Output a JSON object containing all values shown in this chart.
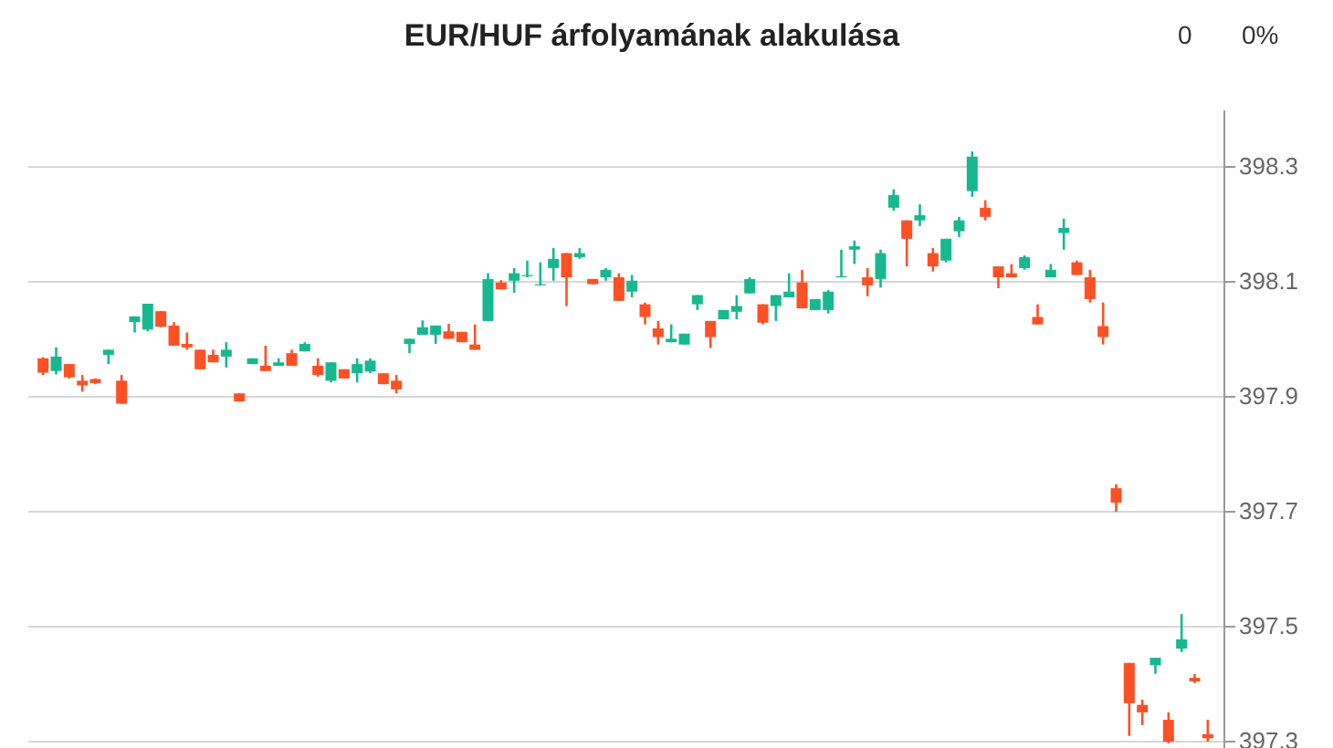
{
  "chart_data": {
    "type": "candlestick",
    "title": "EUR/HUF árfolyamának alakulása",
    "annotations": [
      "0",
      "0%"
    ],
    "categories": [
      null,
      null,
      null,
      null,
      null,
      null,
      null,
      null,
      null,
      null,
      null,
      null,
      null,
      null,
      null,
      null,
      null,
      null,
      null,
      null,
      null,
      null,
      null,
      null,
      null,
      null,
      null,
      null,
      null,
      null,
      null,
      null,
      null,
      null,
      null,
      null,
      null,
      null,
      null,
      null,
      null,
      null,
      null,
      null,
      null,
      null,
      null,
      null,
      null,
      null,
      null,
      null,
      null,
      null,
      null,
      null,
      null,
      null,
      null,
      null,
      null,
      null,
      null,
      null,
      null,
      null,
      null,
      null,
      null,
      null,
      null,
      null,
      null,
      null,
      null,
      null,
      null,
      null,
      null,
      null,
      null,
      null,
      null,
      null,
      null,
      null,
      null,
      null,
      null,
      null
    ],
    "ohlc": [
      [
        397.965,
        397.967,
        397.936,
        397.94
      ],
      [
        397.943,
        397.984,
        397.937,
        397.968
      ],
      [
        397.955,
        397.955,
        397.93,
        397.932
      ],
      [
        397.926,
        397.936,
        397.907,
        397.918
      ],
      [
        397.929,
        397.93,
        397.92,
        397.922
      ],
      [
        397.971,
        397.98,
        397.955,
        397.98
      ],
      [
        397.926,
        397.936,
        397.886,
        397.886
      ],
      [
        398.028,
        398.038,
        398.01,
        398.038
      ],
      [
        398.015,
        398.06,
        398.012,
        398.06
      ],
      [
        398.047,
        398.047,
        398.019,
        398.02
      ],
      [
        398.022,
        398.028,
        397.987,
        397.987
      ],
      [
        397.99,
        398.01,
        397.98,
        397.984
      ],
      [
        397.98,
        397.98,
        397.946,
        397.946
      ],
      [
        397.971,
        397.98,
        397.958,
        397.958
      ],
      [
        397.968,
        397.993,
        397.949,
        397.98
      ],
      [
        397.904,
        397.904,
        397.89,
        397.89
      ],
      [
        397.955,
        397.965,
        397.955,
        397.965
      ],
      [
        397.952,
        397.987,
        397.943,
        397.943
      ],
      [
        397.952,
        397.965,
        397.952,
        397.958
      ],
      [
        397.974,
        397.98,
        397.952,
        397.952
      ],
      [
        397.977,
        397.993,
        397.977,
        397.99
      ],
      [
        397.952,
        397.965,
        397.933,
        397.936
      ],
      [
        397.926,
        397.958,
        397.923,
        397.958
      ],
      [
        397.946,
        397.946,
        397.93,
        397.93
      ],
      [
        397.939,
        397.965,
        397.923,
        397.955
      ],
      [
        397.942,
        397.965,
        397.939,
        397.961
      ],
      [
        397.939,
        397.939,
        397.92,
        397.92
      ],
      [
        397.926,
        397.936,
        397.904,
        397.911
      ],
      [
        397.99,
        397.999,
        397.974,
        397.999
      ],
      [
        398.006,
        398.031,
        398.006,
        398.019
      ],
      [
        398.006,
        398.022,
        397.99,
        398.022
      ],
      [
        398.012,
        398.025,
        397.999,
        397.999
      ],
      [
        398.011,
        398.011,
        397.993,
        397.993
      ],
      [
        397.989,
        398.024,
        397.98,
        397.98
      ],
      [
        398.03,
        398.113,
        398.03,
        398.103
      ],
      [
        398.097,
        398.101,
        398.085,
        398.085
      ],
      [
        398.1,
        398.122,
        398.079,
        398.113
      ],
      [
        398.108,
        398.135,
        398.106,
        398.11
      ],
      [
        398.092,
        398.132,
        398.092,
        398.094
      ],
      [
        398.122,
        398.157,
        398.1,
        398.138
      ],
      [
        398.148,
        398.148,
        398.056,
        398.106
      ],
      [
        398.141,
        398.157,
        398.138,
        398.148
      ],
      [
        398.103,
        398.103,
        398.094,
        398.094
      ],
      [
        398.106,
        398.122,
        398.1,
        398.119
      ],
      [
        398.106,
        398.113,
        398.065,
        398.065
      ],
      [
        398.081,
        398.11,
        398.071,
        398.1
      ],
      [
        398.059,
        398.062,
        398.024,
        398.037
      ],
      [
        398.017,
        398.03,
        397.989,
        398.002
      ],
      [
        397.993,
        398.024,
        397.993,
        397.999
      ],
      [
        397.989,
        398.008,
        397.989,
        398.008
      ],
      [
        398.059,
        398.075,
        398.049,
        398.075
      ],
      [
        398.03,
        398.03,
        397.983,
        398.002
      ],
      [
        398.033,
        398.049,
        398.033,
        398.049
      ],
      [
        398.046,
        398.075,
        398.033,
        398.056
      ],
      [
        398.078,
        398.106,
        398.078,
        398.103
      ],
      [
        398.059,
        398.059,
        398.024,
        398.027
      ],
      [
        398.056,
        398.075,
        398.03,
        398.075
      ],
      [
        398.071,
        398.113,
        398.071,
        398.081
      ],
      [
        398.097,
        398.119,
        398.052,
        398.052
      ],
      [
        398.049,
        398.068,
        398.049,
        398.068
      ],
      [
        398.049,
        398.084,
        398.043,
        398.081
      ],
      [
        398.106,
        398.154,
        398.106,
        398.108
      ],
      [
        398.154,
        398.17,
        398.129,
        398.16
      ],
      [
        398.106,
        398.122,
        398.073,
        398.092
      ],
      [
        398.103,
        398.154,
        398.088,
        398.148
      ],
      [
        398.227,
        398.259,
        398.222,
        398.249
      ],
      [
        398.205,
        398.205,
        398.125,
        398.173
      ],
      [
        398.205,
        398.233,
        398.195,
        398.214
      ],
      [
        398.148,
        398.157,
        398.116,
        398.125
      ],
      [
        398.135,
        398.173,
        398.132,
        398.173
      ],
      [
        398.186,
        398.211,
        398.176,
        398.205
      ],
      [
        398.256,
        398.325,
        398.246,
        398.316
      ],
      [
        398.227,
        398.24,
        398.205,
        398.211
      ],
      [
        398.125,
        398.125,
        398.087,
        398.106
      ],
      [
        398.113,
        398.129,
        398.106,
        398.106
      ],
      [
        398.122,
        398.144,
        398.119,
        398.141
      ],
      [
        398.037,
        398.059,
        398.024,
        398.024
      ],
      [
        398.106,
        398.129,
        398.106,
        398.119
      ],
      [
        398.183,
        398.208,
        398.154,
        398.192
      ],
      [
        398.132,
        398.135,
        398.11,
        398.11
      ],
      [
        398.106,
        398.119,
        398.062,
        398.068
      ],
      [
        398.021,
        398.062,
        397.989,
        398.002
      ],
      [
        397.739,
        397.746,
        397.698,
        397.714
      ],
      [
        397.435,
        397.435,
        397.308,
        397.365
      ],
      [
        397.362,
        397.371,
        397.327,
        397.349
      ],
      [
        397.431,
        397.444,
        397.416,
        397.444
      ],
      [
        397.336,
        397.349,
        397.295,
        397.298
      ],
      [
        397.46,
        397.52,
        397.454,
        397.476
      ],
      [
        397.409,
        397.416,
        397.4,
        397.403
      ],
      [
        397.311,
        397.336,
        397.298,
        397.304
      ]
    ],
    "colors": [
      "#fc5025",
      "#17b890",
      "#fc5025",
      "#fc5025",
      "#fc5025",
      "#17b890",
      "#fc5025",
      "#17b890",
      "#17b890",
      "#fc5025",
      "#fc5025",
      "#fc5025",
      "#fc5025",
      "#fc5025",
      "#17b890",
      "#fc5025",
      "#17b890",
      "#fc5025",
      "#17b890",
      "#fc5025",
      "#17b890",
      "#fc5025",
      "#17b890",
      "#fc5025",
      "#17b890",
      "#17b890",
      "#fc5025",
      "#fc5025",
      "#17b890",
      "#17b890",
      "#17b890",
      "#fc5025",
      "#fc5025",
      "#fc5025",
      "#17b890",
      "#fc5025",
      "#17b890",
      "#17b890",
      "#17b890",
      "#17b890",
      "#fc5025",
      "#17b890",
      "#fc5025",
      "#17b890",
      "#fc5025",
      "#17b890",
      "#fc5025",
      "#fc5025",
      "#17b890",
      "#17b890",
      "#17b890",
      "#fc5025",
      "#17b890",
      "#17b890",
      "#17b890",
      "#fc5025",
      "#17b890",
      "#17b890",
      "#fc5025",
      "#17b890",
      "#17b890",
      "#17b890",
      "#17b890",
      "#fc5025",
      "#17b890",
      "#17b890",
      "#fc5025",
      "#17b890",
      "#fc5025",
      "#17b890",
      "#17b890",
      "#17b890",
      "#fc5025",
      "#fc5025",
      "#fc5025",
      "#17b890",
      "#fc5025",
      "#17b890",
      "#17b890",
      "#fc5025",
      "#fc5025",
      "#fc5025",
      "#fc5025",
      "#fc5025",
      "#fc5025",
      "#17b890",
      "#fc5025",
      "#17b890",
      "#fc5025",
      "#fc5025"
    ],
    "ylim": [
      397.287,
      398.398
    ],
    "yticks": [
      397.3,
      397.5,
      397.7,
      397.9,
      398.1,
      398.3
    ],
    "grid": "y"
  }
}
